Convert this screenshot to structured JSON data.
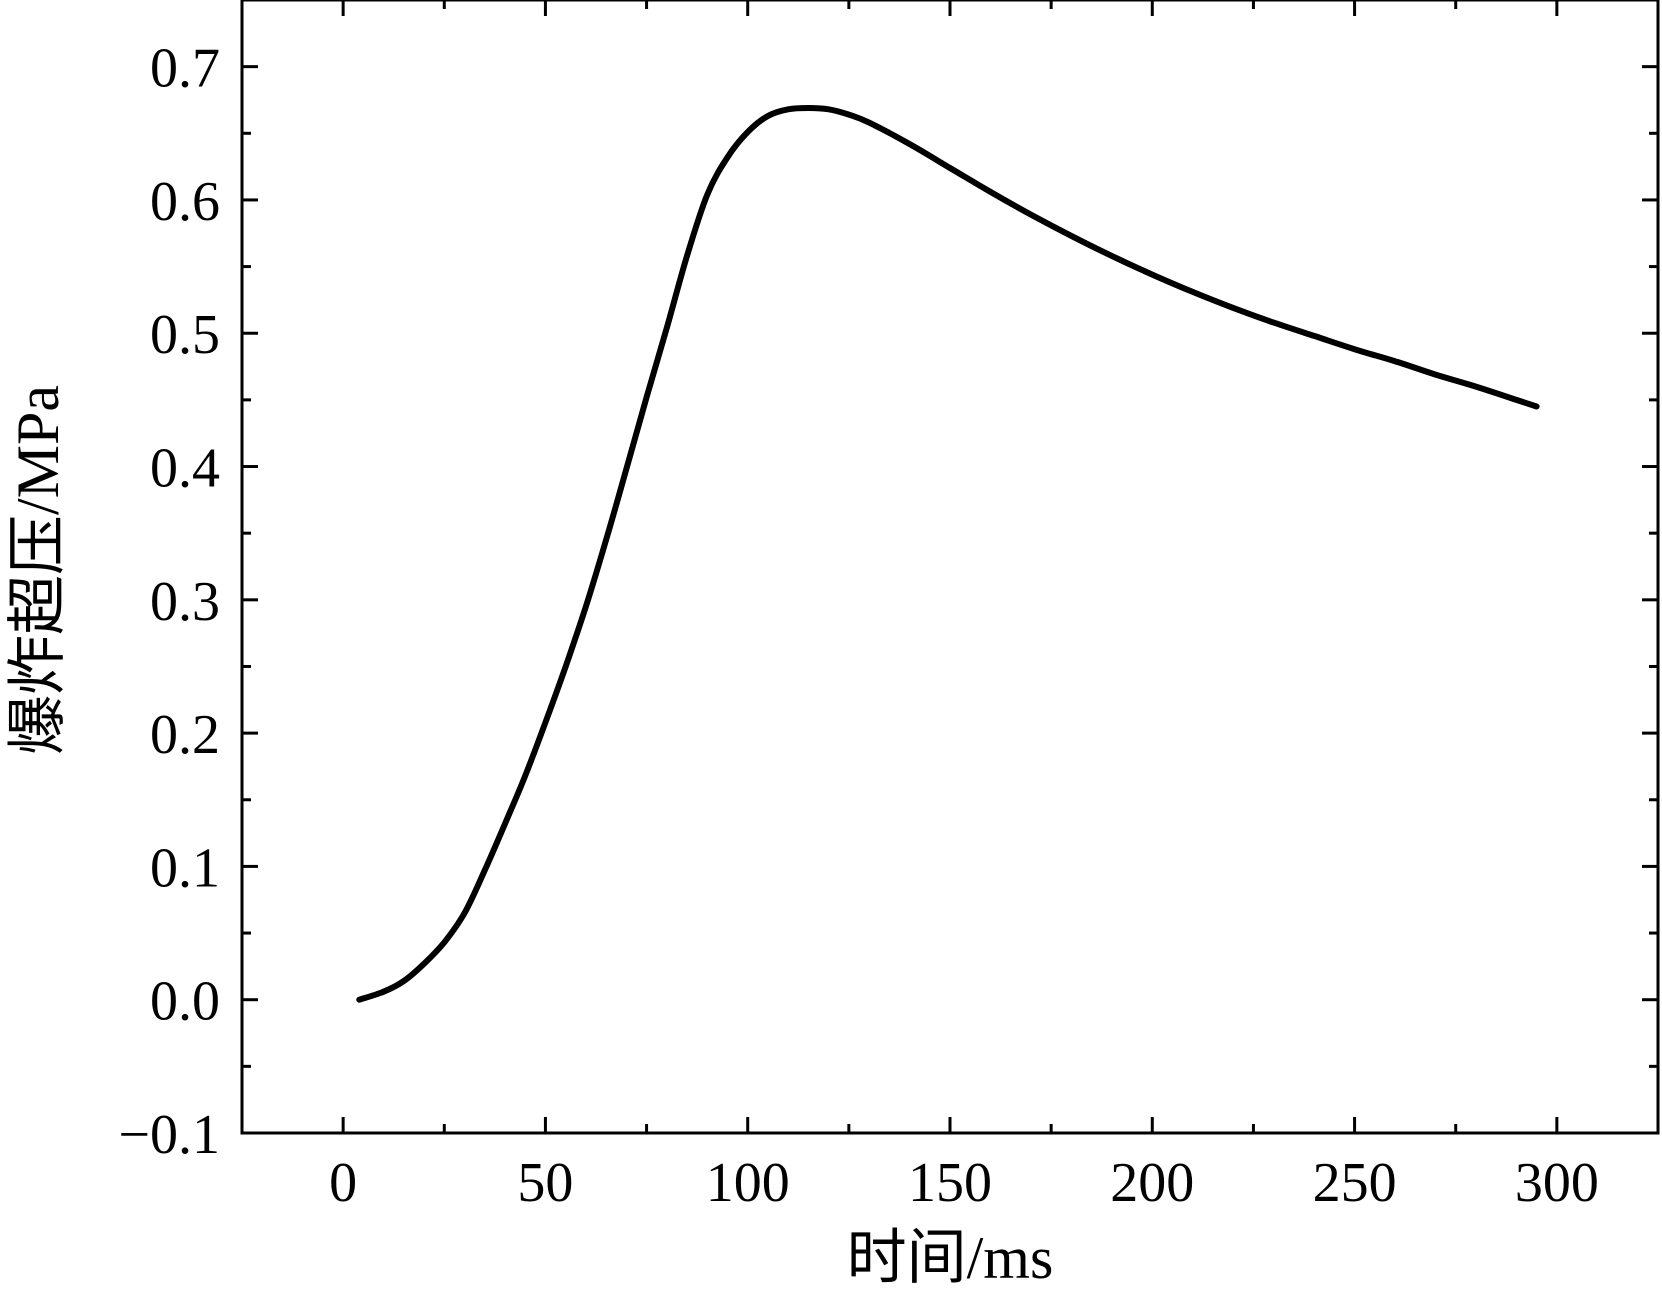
{
  "chart_data": {
    "type": "line",
    "xlabel": "时间/ms",
    "ylabel": "爆炸超压/MPa",
    "xlim": [
      -25,
      325
    ],
    "ylim": [
      -0.1,
      0.75
    ],
    "x_ticks": [
      0,
      50,
      100,
      150,
      200,
      250,
      300
    ],
    "x_tick_labels": [
      "0",
      "50",
      "100",
      "150",
      "200",
      "250",
      "300"
    ],
    "x_minor_ticks": [
      -25,
      25,
      75,
      125,
      175,
      225,
      275,
      325
    ],
    "y_ticks": [
      -0.1,
      0.0,
      0.1,
      0.2,
      0.3,
      0.4,
      0.5,
      0.6,
      0.7
    ],
    "y_tick_labels": [
      "−0.1",
      "0.0",
      "0.1",
      "0.2",
      "0.3",
      "0.4",
      "0.5",
      "0.6",
      "0.7"
    ],
    "y_minor_ticks": [
      -0.05,
      0.05,
      0.15,
      0.25,
      0.35,
      0.45,
      0.55,
      0.65
    ],
    "grid": false,
    "series": [
      {
        "color": "#000000",
        "x": [
          4,
          10,
          15,
          20,
          25,
          30,
          35,
          40,
          45,
          50,
          55,
          60,
          65,
          70,
          75,
          80,
          85,
          90,
          95,
          100,
          105,
          110,
          115,
          120,
          125,
          130,
          140,
          150,
          160,
          170,
          180,
          190,
          200,
          210,
          220,
          230,
          240,
          250,
          260,
          270,
          280,
          290,
          295
        ],
        "y": [
          0.0,
          0.006,
          0.014,
          0.027,
          0.043,
          0.065,
          0.097,
          0.132,
          0.168,
          0.208,
          0.25,
          0.295,
          0.345,
          0.398,
          0.452,
          0.504,
          0.558,
          0.604,
          0.632,
          0.651,
          0.663,
          0.668,
          0.669,
          0.668,
          0.664,
          0.658,
          0.642,
          0.624,
          0.606,
          0.589,
          0.573,
          0.558,
          0.544,
          0.531,
          0.519,
          0.508,
          0.498,
          0.488,
          0.479,
          0.469,
          0.46,
          0.45,
          0.445
        ]
      }
    ]
  }
}
